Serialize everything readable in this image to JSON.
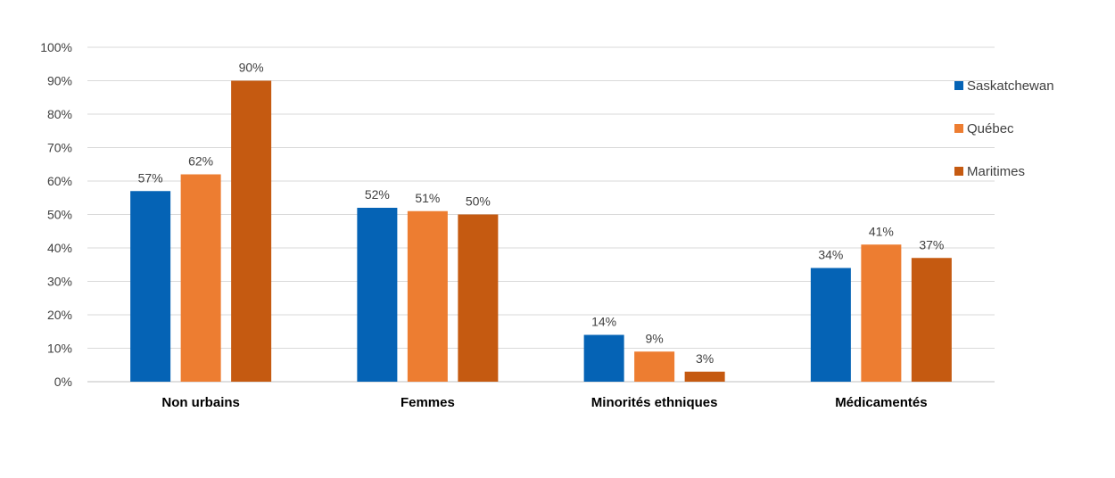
{
  "chart_data": {
    "type": "bar",
    "categories": [
      "Non urbains",
      "Femmes",
      "Minorités ethniques",
      "Médicamentés"
    ],
    "series": [
      {
        "name": "Saskatchewan",
        "color": "#0563b5",
        "values": [
          57,
          52,
          14,
          34
        ]
      },
      {
        "name": "Québec",
        "color": "#ed7d31",
        "values": [
          62,
          51,
          9,
          41
        ]
      },
      {
        "name": "Maritimes",
        "color": "#c55a11",
        "values": [
          90,
          50,
          3,
          37
        ]
      }
    ],
    "value_suffix": "%",
    "y_ticks": [
      "0%",
      "10%",
      "20%",
      "30%",
      "40%",
      "50%",
      "60%",
      "70%",
      "80%",
      "90%",
      "100%"
    ],
    "ylim": [
      0,
      100
    ],
    "grid": true,
    "legend_position": "right"
  }
}
